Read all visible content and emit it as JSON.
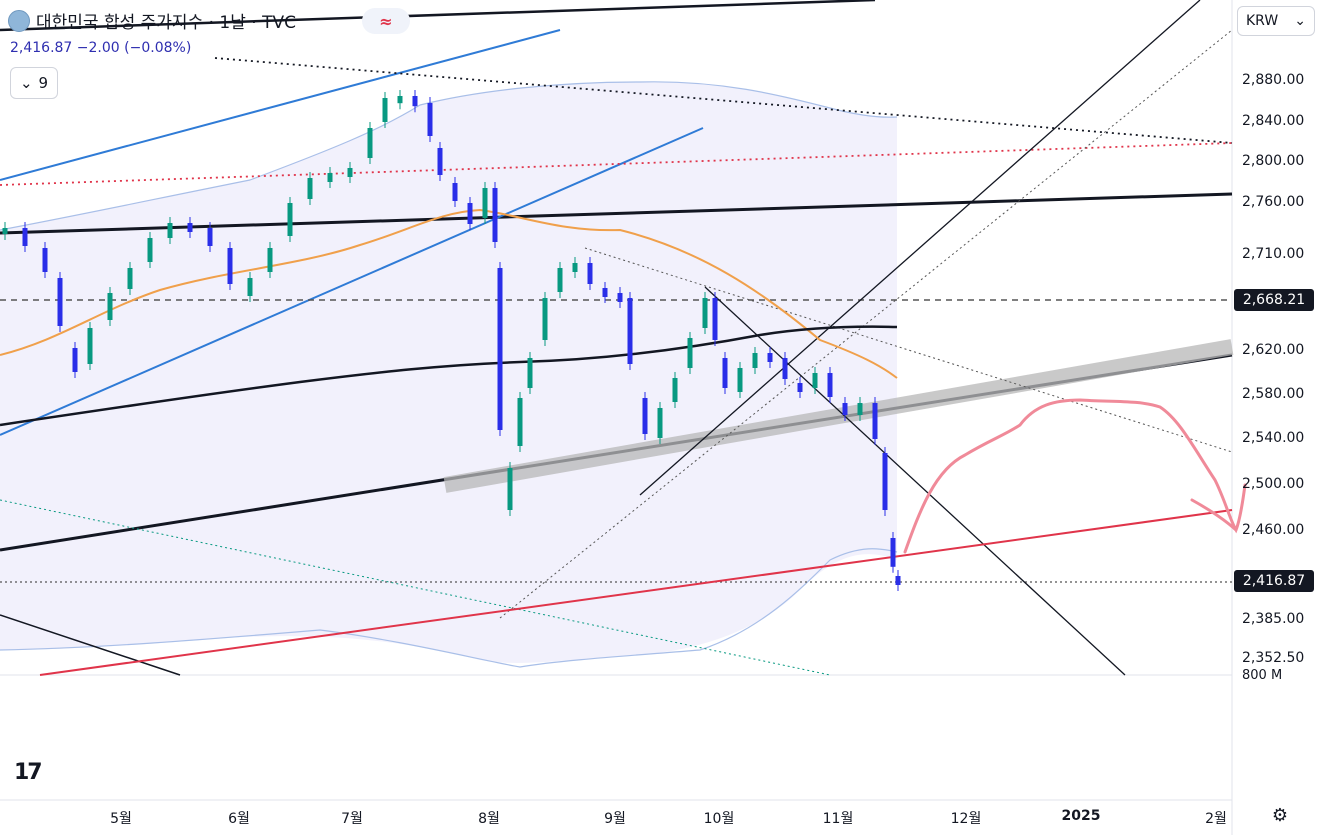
{
  "header": {
    "title": "대한민국 합성 주가지수 · 1날 · TVC",
    "price_line": "2,416.87 −2.00 (−0.08%)",
    "indicators_count": "9",
    "currency": "KRW"
  },
  "colors": {
    "up": "#089981",
    "down": "#2a2ee8",
    "ma_orange": "#f0a04b",
    "bollinger": "#9fb7e6",
    "channel_blue": "#2f7bd6",
    "red_line": "#e0344a",
    "forecast_pink": "#f08a99"
  },
  "chart_data": {
    "type": "candlestick",
    "y_ticks": [
      "2,880.00",
      "2,840.00",
      "2,800.00",
      "2,760.00",
      "2,710.00",
      "2,620.00",
      "2,580.00",
      "2,540.00",
      "2,500.00",
      "2,460.00",
      "2,385.00",
      "2,352.50"
    ],
    "x_ticks": [
      "5월",
      "6월",
      "7월",
      "8월",
      "9월",
      "10월",
      "11월",
      "12월",
      "2025",
      "2월"
    ],
    "price_badges": [
      "2,668.21",
      "2,416.87"
    ],
    "volume_tick": "800 M",
    "last_close": 2416.87
  },
  "icons": {
    "flag": "flag-icon",
    "compare": "compare-icon",
    "settings": "settings-icon",
    "logo": "tradingview-logo"
  }
}
